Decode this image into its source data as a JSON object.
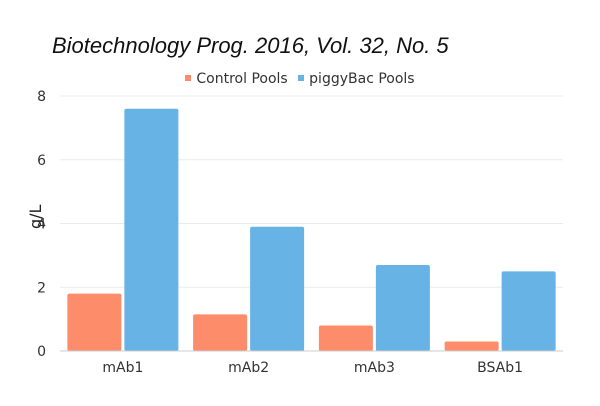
{
  "chart_data": {
    "type": "bar",
    "title": "Biotechnology Prog. 2016, Vol. 32, No. 5",
    "xlabel": "",
    "ylabel": "g/L",
    "categories": [
      "mAb1",
      "mAb2",
      "mAb3",
      "BSAb1"
    ],
    "series": [
      {
        "name": "Control Pools",
        "color": "#fd8c6b",
        "values": [
          1.8,
          1.15,
          0.8,
          0.3
        ]
      },
      {
        "name": "piggyBac Pools",
        "color": "#67b3e6",
        "values": [
          7.6,
          3.9,
          2.7,
          2.5
        ]
      }
    ],
    "ylim": [
      0,
      8
    ],
    "yticks": [
      "0",
      "2",
      "4",
      "6",
      "8"
    ],
    "grid": true,
    "legend_position": "top-center"
  }
}
